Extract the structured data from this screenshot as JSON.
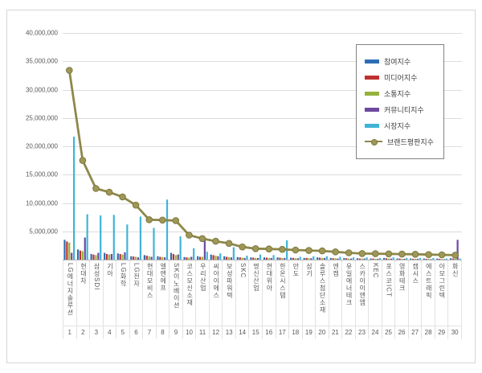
{
  "chart_data": {
    "type": "bar+line",
    "title": "",
    "legend_position": "top-right",
    "grid": true,
    "categories": [
      "LG에너지솔루션",
      "현대차",
      "삼성SDI",
      "기아",
      "LG화학",
      "LG전자",
      "현대모비스",
      "엘앤에프",
      "SK이노베이션",
      "코스모신소재",
      "우리산업",
      "씨아이에스",
      "보성파워텍",
      "SKC",
      "명신산업",
      "현대위아",
      "한온시스템",
      "만도",
      "삼기",
      "솔루스첨단소재",
      "엔켐",
      "유일에너테크",
      "스카이이앤엠",
      "KEC",
      "포스코ICT",
      "영화테크",
      "캠시스",
      "에스트래픽",
      "아모그린텍",
      "화신"
    ],
    "ranks": [
      "1",
      "2",
      "3",
      "4",
      "5",
      "6",
      "7",
      "8",
      "9",
      "10",
      "11",
      "12",
      "13",
      "14",
      "15",
      "16",
      "17",
      "18",
      "19",
      "20",
      "21",
      "22",
      "23",
      "24",
      "25",
      "26",
      "27",
      "28",
      "29",
      "30"
    ],
    "y_axis": {
      "min": 0,
      "max": 40000000,
      "step": 5000000,
      "tick_labels": [
        "40,000,000",
        "35,000,000",
        "30,000,000",
        "25,000,000",
        "20,000,000",
        "15,000,000",
        "10,000,000",
        "5,000,000"
      ]
    },
    "bar_series": [
      {
        "name": "참여지수",
        "color": "#2e6db4",
        "values": [
          3500000,
          1800000,
          1000000,
          1200000,
          1100000,
          600000,
          800000,
          600000,
          1200000,
          450000,
          600000,
          900000,
          600000,
          450000,
          400000,
          400000,
          400000,
          350000,
          300000,
          400000,
          300000,
          300000,
          250000,
          200000,
          300000,
          200000,
          200000,
          200000,
          200000,
          250000
        ]
      },
      {
        "name": "미디어지수",
        "color": "#bf312e",
        "values": [
          3200000,
          1600000,
          900000,
          1000000,
          1000000,
          550000,
          700000,
          500000,
          1000000,
          400000,
          500000,
          800000,
          500000,
          400000,
          350000,
          350000,
          350000,
          300000,
          300000,
          350000,
          250000,
          250000,
          200000,
          200000,
          250000,
          200000,
          150000,
          150000,
          150000,
          200000
        ]
      },
      {
        "name": "소통지수",
        "color": "#95b33c",
        "values": [
          3000000,
          1500000,
          800000,
          900000,
          900000,
          500000,
          600000,
          450000,
          800000,
          350000,
          500000,
          700000,
          450000,
          350000,
          300000,
          300000,
          300000,
          250000,
          250000,
          300000,
          250000,
          200000,
          200000,
          150000,
          200000,
          150000,
          150000,
          150000,
          100000,
          150000
        ]
      },
      {
        "name": "커뮤니티지수",
        "color": "#6c4aa0",
        "values": [
          1200000,
          3900000,
          1200000,
          1000000,
          1300000,
          400000,
          500000,
          400000,
          900000,
          500000,
          3800000,
          600000,
          400000,
          300000,
          300000,
          300000,
          300000,
          250000,
          250000,
          300000,
          200000,
          200000,
          200000,
          150000,
          200000,
          150000,
          150000,
          100000,
          100000,
          3500000
        ]
      },
      {
        "name": "시장지수",
        "color": "#40b4d6",
        "values": [
          21700000,
          8000000,
          7800000,
          7900000,
          6200000,
          7600000,
          5600000,
          10600000,
          4100000,
          2000000,
          1400000,
          1100000,
          2200000,
          700000,
          900000,
          800000,
          3400000,
          500000,
          600000,
          600000,
          500000,
          400000,
          400000,
          300000,
          400000,
          300000,
          300000,
          300000,
          200000,
          200000
        ]
      }
    ],
    "line_series": {
      "name": "브랜드평판지수",
      "color": "#8e884a",
      "marker_fill": "#9e9757",
      "marker_stroke": "#7d783f",
      "values": [
        33400000,
        17500000,
        12550000,
        11900000,
        11080000,
        9620000,
        7050000,
        6980000,
        6890000,
        4320000,
        3720000,
        3250000,
        2860000,
        2240000,
        1950000,
        1880000,
        1810000,
        1700000,
        1620000,
        1540000,
        1380000,
        1200000,
        1080000,
        1050000,
        1020000,
        980000,
        950000,
        900000,
        850000,
        800000
      ]
    }
  }
}
